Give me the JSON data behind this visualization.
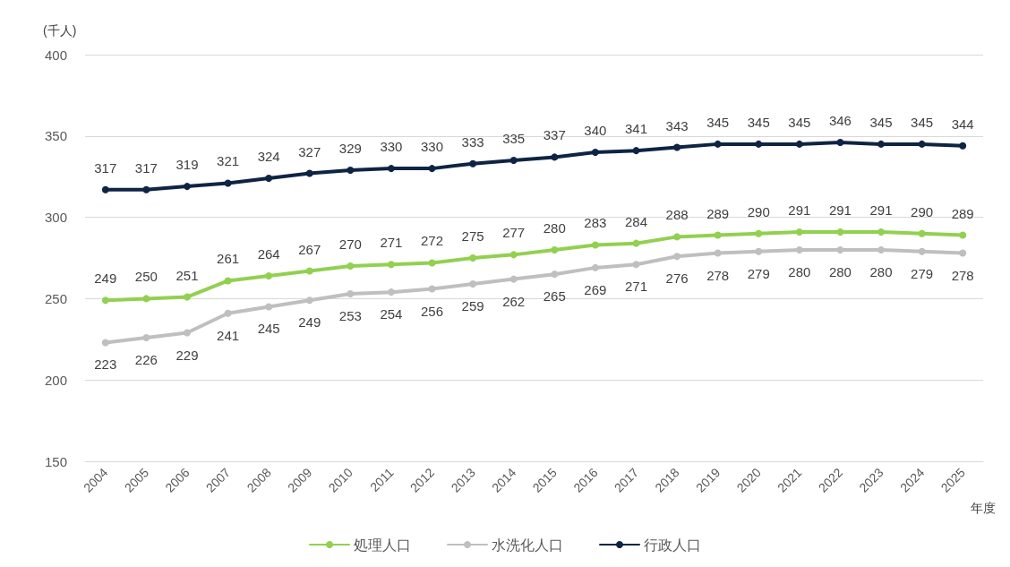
{
  "chart_data": {
    "type": "line",
    "ylabel": "(千人)",
    "xlabel": "年度",
    "categories": [
      "2004",
      "2005",
      "2006",
      "2007",
      "2008",
      "2009",
      "2010",
      "2011",
      "2012",
      "2013",
      "2014",
      "2015",
      "2016",
      "2017",
      "2018",
      "2019",
      "2020",
      "2021",
      "2022",
      "2023",
      "2024",
      "2025"
    ],
    "series": [
      {
        "name": "処理人口",
        "color": "#92d050",
        "values": [
          249,
          250,
          251,
          261,
          264,
          267,
          270,
          271,
          272,
          275,
          277,
          280,
          283,
          284,
          288,
          289,
          290,
          291,
          291,
          291,
          290,
          289
        ]
      },
      {
        "name": "水洗化人口",
        "color": "#bfbfbf",
        "values": [
          223,
          226,
          229,
          241,
          245,
          249,
          253,
          254,
          256,
          259,
          262,
          265,
          269,
          271,
          276,
          278,
          279,
          280,
          280,
          280,
          279,
          278
        ]
      },
      {
        "name": "行政人口",
        "color": "#0e2444",
        "values": [
          317,
          317,
          319,
          321,
          324,
          327,
          329,
          330,
          330,
          333,
          335,
          337,
          340,
          341,
          343,
          345,
          345,
          345,
          346,
          345,
          345,
          344
        ]
      }
    ],
    "ylim": [
      150,
      400
    ],
    "yticks": [
      150,
      200,
      250,
      300,
      350,
      400
    ],
    "grid": "y",
    "legend": "bottom",
    "marker": "circle",
    "line_style": "solid",
    "data_labels": true
  }
}
